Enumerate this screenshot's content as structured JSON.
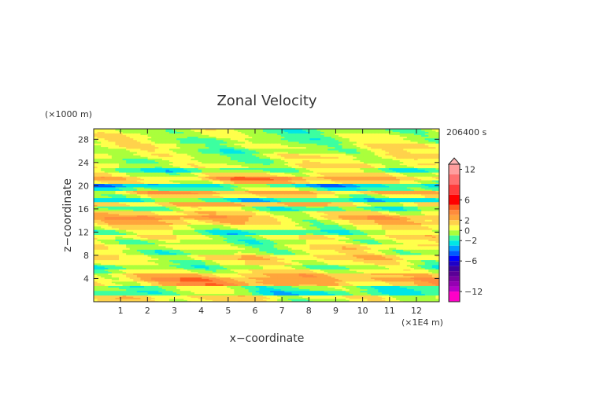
{
  "chart_data": {
    "type": "heatmap",
    "title": "Zonal Velocity",
    "xlabel": "x−coordinate",
    "ylabel": "z−coordinate",
    "x_unit": "(×1E4 m)",
    "y_unit": "(×1000 m)",
    "time_label": "206400 s",
    "xlim": [
      0,
      12.85
    ],
    "ylim": [
      0,
      29.8
    ],
    "x_ticks": [
      "1",
      "2",
      "3",
      "4",
      "5",
      "6",
      "7",
      "8",
      "9",
      "10",
      "11",
      "12"
    ],
    "y_ticks": [
      "4",
      "8",
      "12",
      "16",
      "20",
      "24",
      "28"
    ],
    "colorbar": {
      "tick_labels": [
        "12",
        "6",
        "2",
        "0",
        "−2",
        "−6",
        "−12"
      ],
      "tick_values": [
        12,
        6,
        2,
        0,
        -2,
        -6,
        -12
      ],
      "levels": [
        {
          "min": 13,
          "max": 15,
          "color": "#ffb4b4"
        },
        {
          "min": 11,
          "max": 13,
          "color": "#ff9e9e"
        },
        {
          "min": 9,
          "max": 11,
          "color": "#ff7070"
        },
        {
          "min": 7,
          "max": 9,
          "color": "#ff3c3c"
        },
        {
          "min": 5,
          "max": 7,
          "color": "#ff0000"
        },
        {
          "min": 4,
          "max": 5,
          "color": "#ff5a1e"
        },
        {
          "min": 3,
          "max": 4,
          "color": "#ff8c3c"
        },
        {
          "min": 2,
          "max": 3,
          "color": "#ffa53c"
        },
        {
          "min": 1,
          "max": 2,
          "color": "#ffd24b"
        },
        {
          "min": 0,
          "max": 1,
          "color": "#ffff4b"
        },
        {
          "min": -1,
          "max": 0,
          "color": "#aaff3c"
        },
        {
          "min": -2,
          "max": -1,
          "color": "#3cffa0"
        },
        {
          "min": -3,
          "max": -2,
          "color": "#00e6e6"
        },
        {
          "min": -4,
          "max": -3,
          "color": "#00a0ff"
        },
        {
          "min": -5,
          "max": -4,
          "color": "#005aff"
        },
        {
          "min": -6,
          "max": -5,
          "color": "#0000ff"
        },
        {
          "min": -7,
          "max": -6,
          "color": "#1e00c8"
        },
        {
          "min": -8,
          "max": -7,
          "color": "#3c00a0"
        },
        {
          "min": -9,
          "max": -8,
          "color": "#5a0096"
        },
        {
          "min": -10,
          "max": -9,
          "color": "#7800a0"
        },
        {
          "min": -11,
          "max": -10,
          "color": "#9600b4"
        },
        {
          "min": -12,
          "max": -11,
          "color": "#b400c8"
        },
        {
          "min": -14,
          "max": -12,
          "color": "#ff00c8"
        }
      ]
    },
    "bands": [
      {
        "z": 0.3,
        "value": 0.5
      },
      {
        "z": 0.8,
        "value": 1.2
      },
      {
        "z": 1.5,
        "value": -2.2
      },
      {
        "z": 2.4,
        "value": -1.4
      },
      {
        "z": 3.2,
        "value": 2.8
      },
      {
        "z": 3.9,
        "value": 3.3
      },
      {
        "z": 4.6,
        "value": 2.4
      },
      {
        "z": 5.3,
        "value": 0.4
      },
      {
        "z": 6.0,
        "value": -1.3
      },
      {
        "z": 6.8,
        "value": 0.3
      },
      {
        "z": 7.7,
        "value": 1.5
      },
      {
        "z": 8.6,
        "value": -0.4
      },
      {
        "z": 9.5,
        "value": 0.6
      },
      {
        "z": 10.4,
        "value": -0.6
      },
      {
        "z": 11.2,
        "value": 0.7
      },
      {
        "z": 12.0,
        "value": -1.6
      },
      {
        "z": 12.9,
        "value": 0.5
      },
      {
        "z": 13.8,
        "value": 1.8
      },
      {
        "z": 14.6,
        "value": 2.7
      },
      {
        "z": 15.3,
        "value": 1.3
      },
      {
        "z": 16.1,
        "value": -1.2
      },
      {
        "z": 16.9,
        "value": 2.2
      },
      {
        "z": 17.6,
        "value": -2.7
      },
      {
        "z": 18.3,
        "value": 0.8
      },
      {
        "z": 18.9,
        "value": 2.6
      },
      {
        "z": 19.5,
        "value": -1.6
      },
      {
        "z": 20.1,
        "value": -3.4
      },
      {
        "z": 20.7,
        "value": 1.4
      },
      {
        "z": 21.3,
        "value": 3.2
      },
      {
        "z": 22.0,
        "value": 0.9
      },
      {
        "z": 22.7,
        "value": -1.4
      },
      {
        "z": 23.5,
        "value": 0.6
      },
      {
        "z": 24.3,
        "value": -0.2
      },
      {
        "z": 25.2,
        "value": 0.4
      },
      {
        "z": 26.0,
        "value": -0.6
      },
      {
        "z": 26.9,
        "value": 0.3
      },
      {
        "z": 27.8,
        "value": -0.7
      },
      {
        "z": 28.7,
        "value": -0.3
      },
      {
        "z": 29.5,
        "value": -0.8
      }
    ]
  }
}
